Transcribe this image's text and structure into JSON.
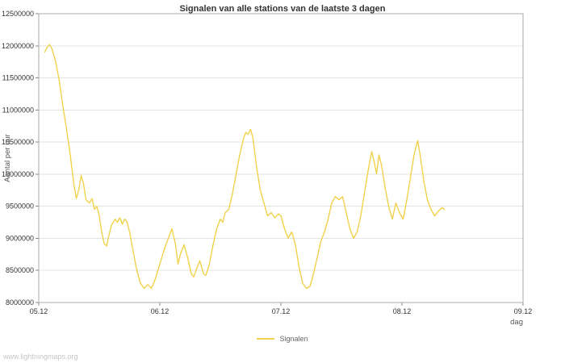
{
  "footer": "www.lightningmaps.org",
  "chart_data": {
    "type": "line",
    "title": "Signalen van alle stations van de laatste 3 dagen",
    "xlabel": "dag",
    "ylabel": "Aantal per uur",
    "x_unit": "days offset from 05.12",
    "xlim": [
      0,
      4
    ],
    "ylim": [
      8000000,
      12500000
    ],
    "grid": "horizontal",
    "legend_position": "bottom-center",
    "y_ticks": [
      8000000,
      8500000,
      9000000,
      9500000,
      10000000,
      10500000,
      11000000,
      11500000,
      12000000,
      12500000
    ],
    "x_ticks": [
      {
        "t": 0,
        "label": "05.12"
      },
      {
        "t": 1,
        "label": "06.12"
      },
      {
        "t": 2,
        "label": "07.12"
      },
      {
        "t": 3,
        "label": "08.12"
      },
      {
        "t": 4,
        "label": "09.12"
      }
    ],
    "series": [
      {
        "name": "Signalen",
        "color": "#f0d24c",
        "x": [
          0.05,
          0.07,
          0.09,
          0.11,
          0.14,
          0.17,
          0.2,
          0.23,
          0.26,
          0.29,
          0.31,
          0.33,
          0.35,
          0.37,
          0.39,
          0.42,
          0.44,
          0.46,
          0.48,
          0.5,
          0.52,
          0.54,
          0.56,
          0.58,
          0.6,
          0.63,
          0.65,
          0.67,
          0.69,
          0.71,
          0.73,
          0.75,
          0.78,
          0.81,
          0.84,
          0.87,
          0.9,
          0.93,
          0.96,
          1.0,
          1.04,
          1.08,
          1.1,
          1.13,
          1.15,
          1.17,
          1.2,
          1.23,
          1.26,
          1.28,
          1.31,
          1.33,
          1.36,
          1.38,
          1.41,
          1.44,
          1.47,
          1.5,
          1.52,
          1.54,
          1.57,
          1.6,
          1.63,
          1.66,
          1.69,
          1.71,
          1.73,
          1.75,
          1.77,
          1.8,
          1.83,
          1.86,
          1.89,
          1.92,
          1.95,
          1.98,
          2.0,
          2.03,
          2.06,
          2.09,
          2.12,
          2.15,
          2.18,
          2.21,
          2.24,
          2.27,
          2.3,
          2.33,
          2.36,
          2.39,
          2.42,
          2.45,
          2.48,
          2.51,
          2.54,
          2.57,
          2.6,
          2.63,
          2.66,
          2.69,
          2.72,
          2.75,
          2.77,
          2.79,
          2.81,
          2.83,
          2.86,
          2.89,
          2.92,
          2.95,
          2.98,
          3.01,
          3.04,
          3.07,
          3.1,
          3.13,
          3.15,
          3.18,
          3.21,
          3.24,
          3.27,
          3.3,
          3.33,
          3.35
        ],
        "y": [
          11900000,
          11980000,
          12020000,
          11950000,
          11750000,
          11450000,
          11050000,
          10700000,
          10300000,
          9850000,
          9620000,
          9750000,
          9980000,
          9850000,
          9600000,
          9550000,
          9620000,
          9450000,
          9500000,
          9350000,
          9100000,
          8920000,
          8880000,
          9050000,
          9200000,
          9300000,
          9250000,
          9320000,
          9220000,
          9300000,
          9250000,
          9100000,
          8800000,
          8500000,
          8300000,
          8220000,
          8280000,
          8220000,
          8350000,
          8600000,
          8850000,
          9050000,
          9150000,
          8900000,
          8600000,
          8750000,
          8900000,
          8700000,
          8450000,
          8400000,
          8550000,
          8650000,
          8450000,
          8420000,
          8600000,
          8900000,
          9150000,
          9300000,
          9250000,
          9400000,
          9450000,
          9700000,
          10000000,
          10300000,
          10550000,
          10650000,
          10620000,
          10700000,
          10550000,
          10100000,
          9750000,
          9550000,
          9350000,
          9400000,
          9320000,
          9380000,
          9350000,
          9150000,
          9000000,
          9100000,
          8900000,
          8550000,
          8300000,
          8220000,
          8250000,
          8450000,
          8700000,
          8950000,
          9100000,
          9300000,
          9550000,
          9650000,
          9600000,
          9650000,
          9400000,
          9150000,
          9000000,
          9100000,
          9350000,
          9700000,
          10050000,
          10350000,
          10200000,
          10000000,
          10300000,
          10150000,
          9800000,
          9500000,
          9300000,
          9550000,
          9400000,
          9300000,
          9600000,
          9950000,
          10300000,
          10520000,
          10300000,
          9900000,
          9600000,
          9450000,
          9350000,
          9420000,
          9480000,
          9450000
        ]
      }
    ]
  }
}
